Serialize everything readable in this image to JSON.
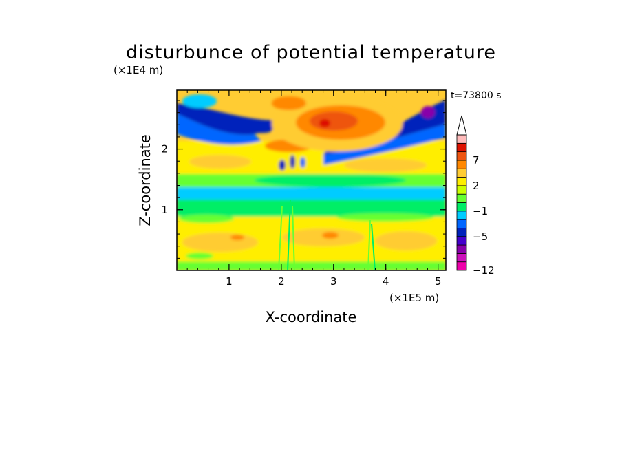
{
  "chart_data": {
    "type": "heatmap",
    "title": "disturbunce of potential temperature",
    "time_label": "t=73800 s",
    "xlabel": "X-coordinate",
    "ylabel": "Z-coordinate",
    "x_unit": "(×1E5 m)",
    "y_unit": "(×1E4 m)",
    "xlim": [
      0,
      5.15
    ],
    "ylim": [
      0,
      2.97
    ],
    "x_ticks": [
      1,
      2,
      3,
      4,
      5
    ],
    "y_ticks": [
      1,
      2
    ],
    "x_tick_labels": [
      "1",
      "2",
      "3",
      "4",
      "5"
    ],
    "y_tick_labels": [
      "1",
      "2"
    ],
    "colorbar": {
      "levels_bottom_to_top": [
        -12,
        -11,
        -9,
        -7,
        -5,
        -3,
        -2,
        -1,
        0,
        1,
        2,
        3,
        5,
        7,
        9,
        11
      ],
      "labeled_values": [
        "-12",
        "-5",
        "-1",
        "2",
        "7"
      ],
      "colors_bottom_to_top": [
        "#ee00aa",
        "#cc11bb",
        "#8800aa",
        "#4400cc",
        "#0022bb",
        "#0066ff",
        "#00ccff",
        "#00ee66",
        "#66ff33",
        "#ccff00",
        "#ffee00",
        "#ffcc33",
        "#ff8800",
        "#ee5511",
        "#dd1100",
        "#ffbbbb"
      ],
      "overflow_arrow_color": "#ffffff"
    },
    "field_regions": [
      {
        "region": "upper layer, z 2.3-2.8, x 0-2.0 and 3.5-5.1",
        "value_range": [
          -5,
          -3
        ],
        "description": "blue band"
      },
      {
        "region": "upper center, z 2.2-2.8, x 2.3-3.4",
        "value_range": [
          2,
          9
        ],
        "description": "orange/red maximum near x 2.8, z 2.45"
      },
      {
        "region": "z 1.8-2.2",
        "value_range": [
          -1,
          3
        ],
        "description": "mixed yellow/orange with blue streaks near x 2.0-2.3"
      },
      {
        "region": "z 1.3-1.7",
        "value_range": [
          -2,
          1
        ],
        "description": "cyan/green band"
      },
      {
        "region": "z 0.95-1.3",
        "value_range": [
          0,
          1
        ],
        "description": "green band"
      },
      {
        "region": "z 0-0.95",
        "value_range": [
          1,
          3
        ],
        "description": "yellow/orange lower layer with vertical streaks near x 2.0 and 3.6"
      }
    ]
  }
}
